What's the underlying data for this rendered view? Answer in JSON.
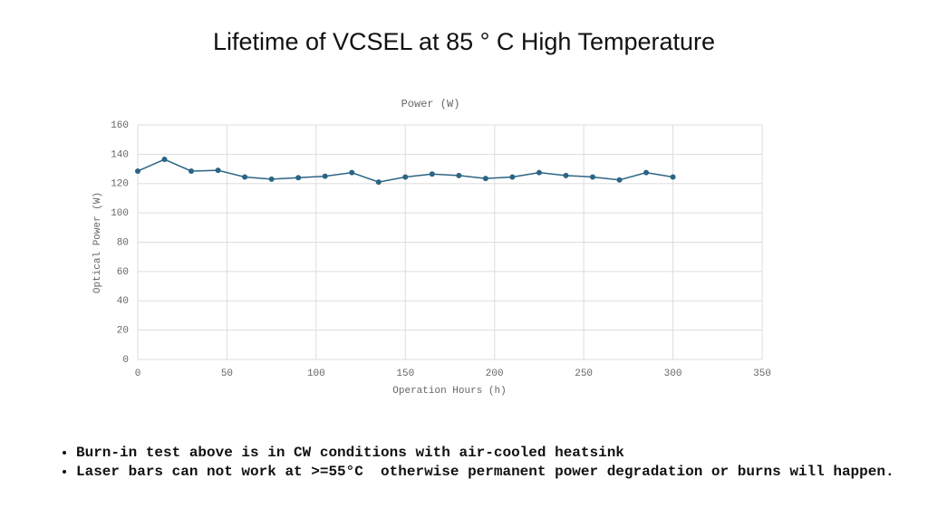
{
  "slide_title": "Lifetime of VCSEL at 85 ° C High Temperature",
  "chart_data": {
    "type": "line",
    "title": "Power (W)",
    "xlabel": "Operation Hours (h)",
    "ylabel": "Optical Power (W)",
    "x": [
      0,
      15,
      30,
      45,
      60,
      75,
      90,
      105,
      120,
      135,
      150,
      165,
      180,
      195,
      210,
      225,
      240,
      255,
      270,
      285,
      300
    ],
    "series": [
      {
        "name": "Power (W)",
        "color": "#2b6585",
        "values": [
          128.5,
          136.5,
          128.5,
          129,
          124.5,
          123,
          124,
          125,
          127.5,
          121,
          124.5,
          126.5,
          125.5,
          123.5,
          124.5,
          127.5,
          125.5,
          124.5,
          122.5,
          127.5,
          124.5
        ]
      }
    ],
    "xlim": [
      0,
      350
    ],
    "xticks": [
      0,
      50,
      100,
      150,
      200,
      250,
      300,
      350
    ],
    "ylim": [
      0,
      160
    ],
    "yticks": [
      0,
      20,
      40,
      60,
      80,
      100,
      120,
      140,
      160
    ],
    "grid": true
  },
  "bullets": [
    "Burn-in test above is in CW conditions with air-cooled heatsink",
    "Laser bars can not work at >=55°C  otherwise permanent power degradation or burns will happen."
  ]
}
